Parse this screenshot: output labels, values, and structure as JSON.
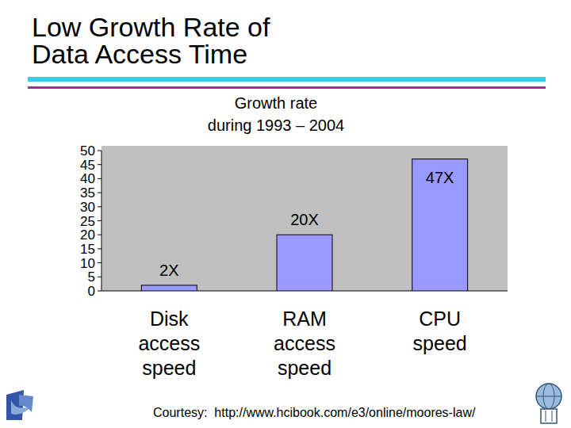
{
  "slide": {
    "title": "Low Growth Rate of\nData Access Time",
    "footer": "Courtesy:  http://www.hcibook.com/e3/online/moores-law/"
  },
  "chart_data": {
    "type": "bar",
    "title": "Growth rate\nduring 1993 – 2004",
    "categories": [
      "Disk\naccess\nspeed",
      "RAM\naccess\nspeed",
      "CPU\nspeed"
    ],
    "values": [
      2,
      20,
      47
    ],
    "value_labels": [
      "2X",
      "20X",
      "47X"
    ],
    "data_labels": true,
    "color": "#9999ff",
    "ylim": [
      0,
      50
    ],
    "yticks": [
      0,
      5,
      10,
      15,
      20,
      25,
      30,
      35,
      40,
      45,
      50
    ],
    "grid": false
  }
}
